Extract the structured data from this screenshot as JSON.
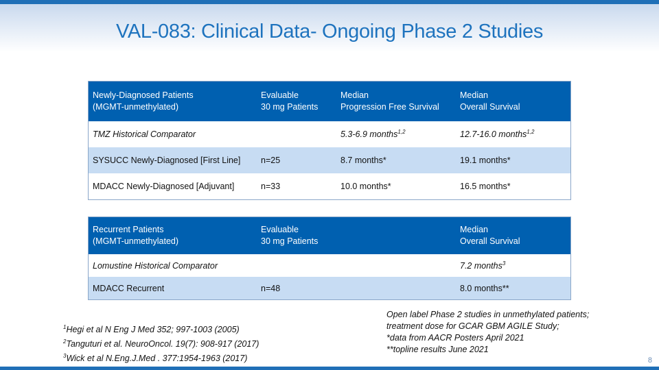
{
  "title": "VAL-083: Clinical Data- Ongoing Phase 2 Studies",
  "table1": {
    "header": {
      "col1_line1": "Newly-Diagnosed Patients",
      "col1_line2": "(MGMT-unmethylated)",
      "col2_line1": "Evaluable",
      "col2_line2": "30 mg Patients",
      "col3_line1": "Median",
      "col3_line2": "Progression Free Survival",
      "col4_line1": "Median",
      "col4_line2": "Overall Survival"
    },
    "rows": [
      {
        "name": "TMZ Historical Comparator",
        "n": "",
        "pfs": "5.3-6.9 months",
        "pfs_sup": "1,2",
        "os": "12.7-16.0 months",
        "os_sup": "1,2"
      },
      {
        "name": "SYSUCC Newly-Diagnosed [First Line]",
        "n": "n=25",
        "pfs": "8.7 months*",
        "os": "19.1 months*"
      },
      {
        "name": "MDACC Newly-Diagnosed [Adjuvant]",
        "n": "n=33",
        "pfs": "10.0 months*",
        "os": "16.5 months*"
      }
    ]
  },
  "table2": {
    "header": {
      "col1_line1": "Recurrent Patients",
      "col1_line2": "(MGMT-unmethylated)",
      "col2_line1": "Evaluable",
      "col2_line2": "30 mg Patients",
      "col4_line1": "Median",
      "col4_line2": "Overall Survival"
    },
    "rows": [
      {
        "name": "Lomustine Historical Comparator",
        "n": "",
        "os": "7.2 months",
        "os_sup": "3"
      },
      {
        "name": "MDACC Recurrent",
        "n": "n=48",
        "os": "8.0 months**"
      }
    ]
  },
  "references": [
    {
      "num": "1",
      "text": "Hegi et al N Eng J Med 352; 997-1003 (2005)"
    },
    {
      "num": "2",
      "text": "Tanguturi et al. NeuroOncol. 19(7): 908-917 (2017)"
    },
    {
      "num": "3",
      "text": "Wick et al N.Eng.J.Med . 377:1954-1963 (2017)"
    }
  ],
  "notes": [
    "Open label Phase 2 studies in unmethylated patients;",
    "treatment dose for GCAR GBM AGILE Study;",
    "*data from AACR Posters April 2021",
    "**topline results June 2021"
  ],
  "page_number": "8",
  "colors": {
    "accent": "#1e73be",
    "header_fill": "#0060b0",
    "row_alt": "#c7dcf3"
  }
}
